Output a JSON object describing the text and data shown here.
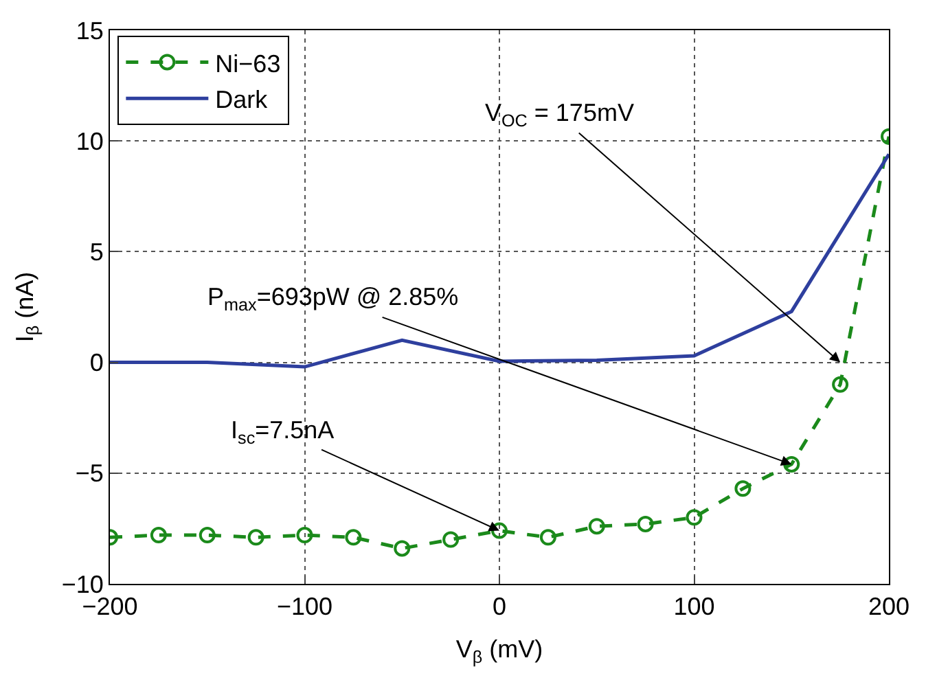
{
  "chart_data": {
    "type": "line",
    "xlabel": "V$_{β}$ (mV)",
    "ylabel": "I$_{β}$ (nA)",
    "x": [
      -200,
      -175,
      -150,
      -125,
      -100,
      -75,
      -50,
      -25,
      0,
      25,
      50,
      75,
      100,
      125,
      150,
      175,
      200
    ],
    "series": [
      {
        "name": "Ni−63",
        "color": "#1b8a1b",
        "line_style": "dashed",
        "marker": "circle",
        "values": [
          -7.9,
          -7.8,
          -7.8,
          -7.9,
          -7.8,
          -7.9,
          -8.4,
          -8.0,
          -7.6,
          -7.9,
          -7.4,
          -7.3,
          -7.0,
          -5.7,
          -4.6,
          -1.0,
          10.2
        ]
      },
      {
        "name": "Dark",
        "color": "#2e3f9e",
        "line_style": "solid",
        "marker": "none",
        "x": [
          -200,
          -150,
          -100,
          -50,
          0,
          50,
          100,
          150,
          200
        ],
        "values": [
          0,
          0,
          -0.2,
          1.0,
          0.05,
          0.1,
          0.3,
          2.3,
          9.4
        ]
      }
    ],
    "xlim": [
      -200,
      200
    ],
    "xticks": [
      {
        "value": -200,
        "label": "−200"
      },
      {
        "value": -100,
        "label": "−100"
      },
      0,
      100,
      200
    ],
    "ylim": [
      -10,
      15
    ],
    "yticks": [
      {
        "value": -10,
        "label": "−10"
      },
      {
        "value": -5,
        "label": "−5"
      },
      0,
      5,
      10,
      15
    ],
    "grid": true,
    "legend": "top left",
    "annotations": [
      {
        "text": "V$_{OC}$ = 175mV",
        "x": 175,
        "y": 0
      },
      {
        "text": "P$_{max}$=693pW @ 2.85%",
        "x": 150,
        "y": -4.6
      },
      {
        "text": "I$_{sc}$=7.5nA",
        "x": 0,
        "y": -7.6
      }
    ]
  }
}
